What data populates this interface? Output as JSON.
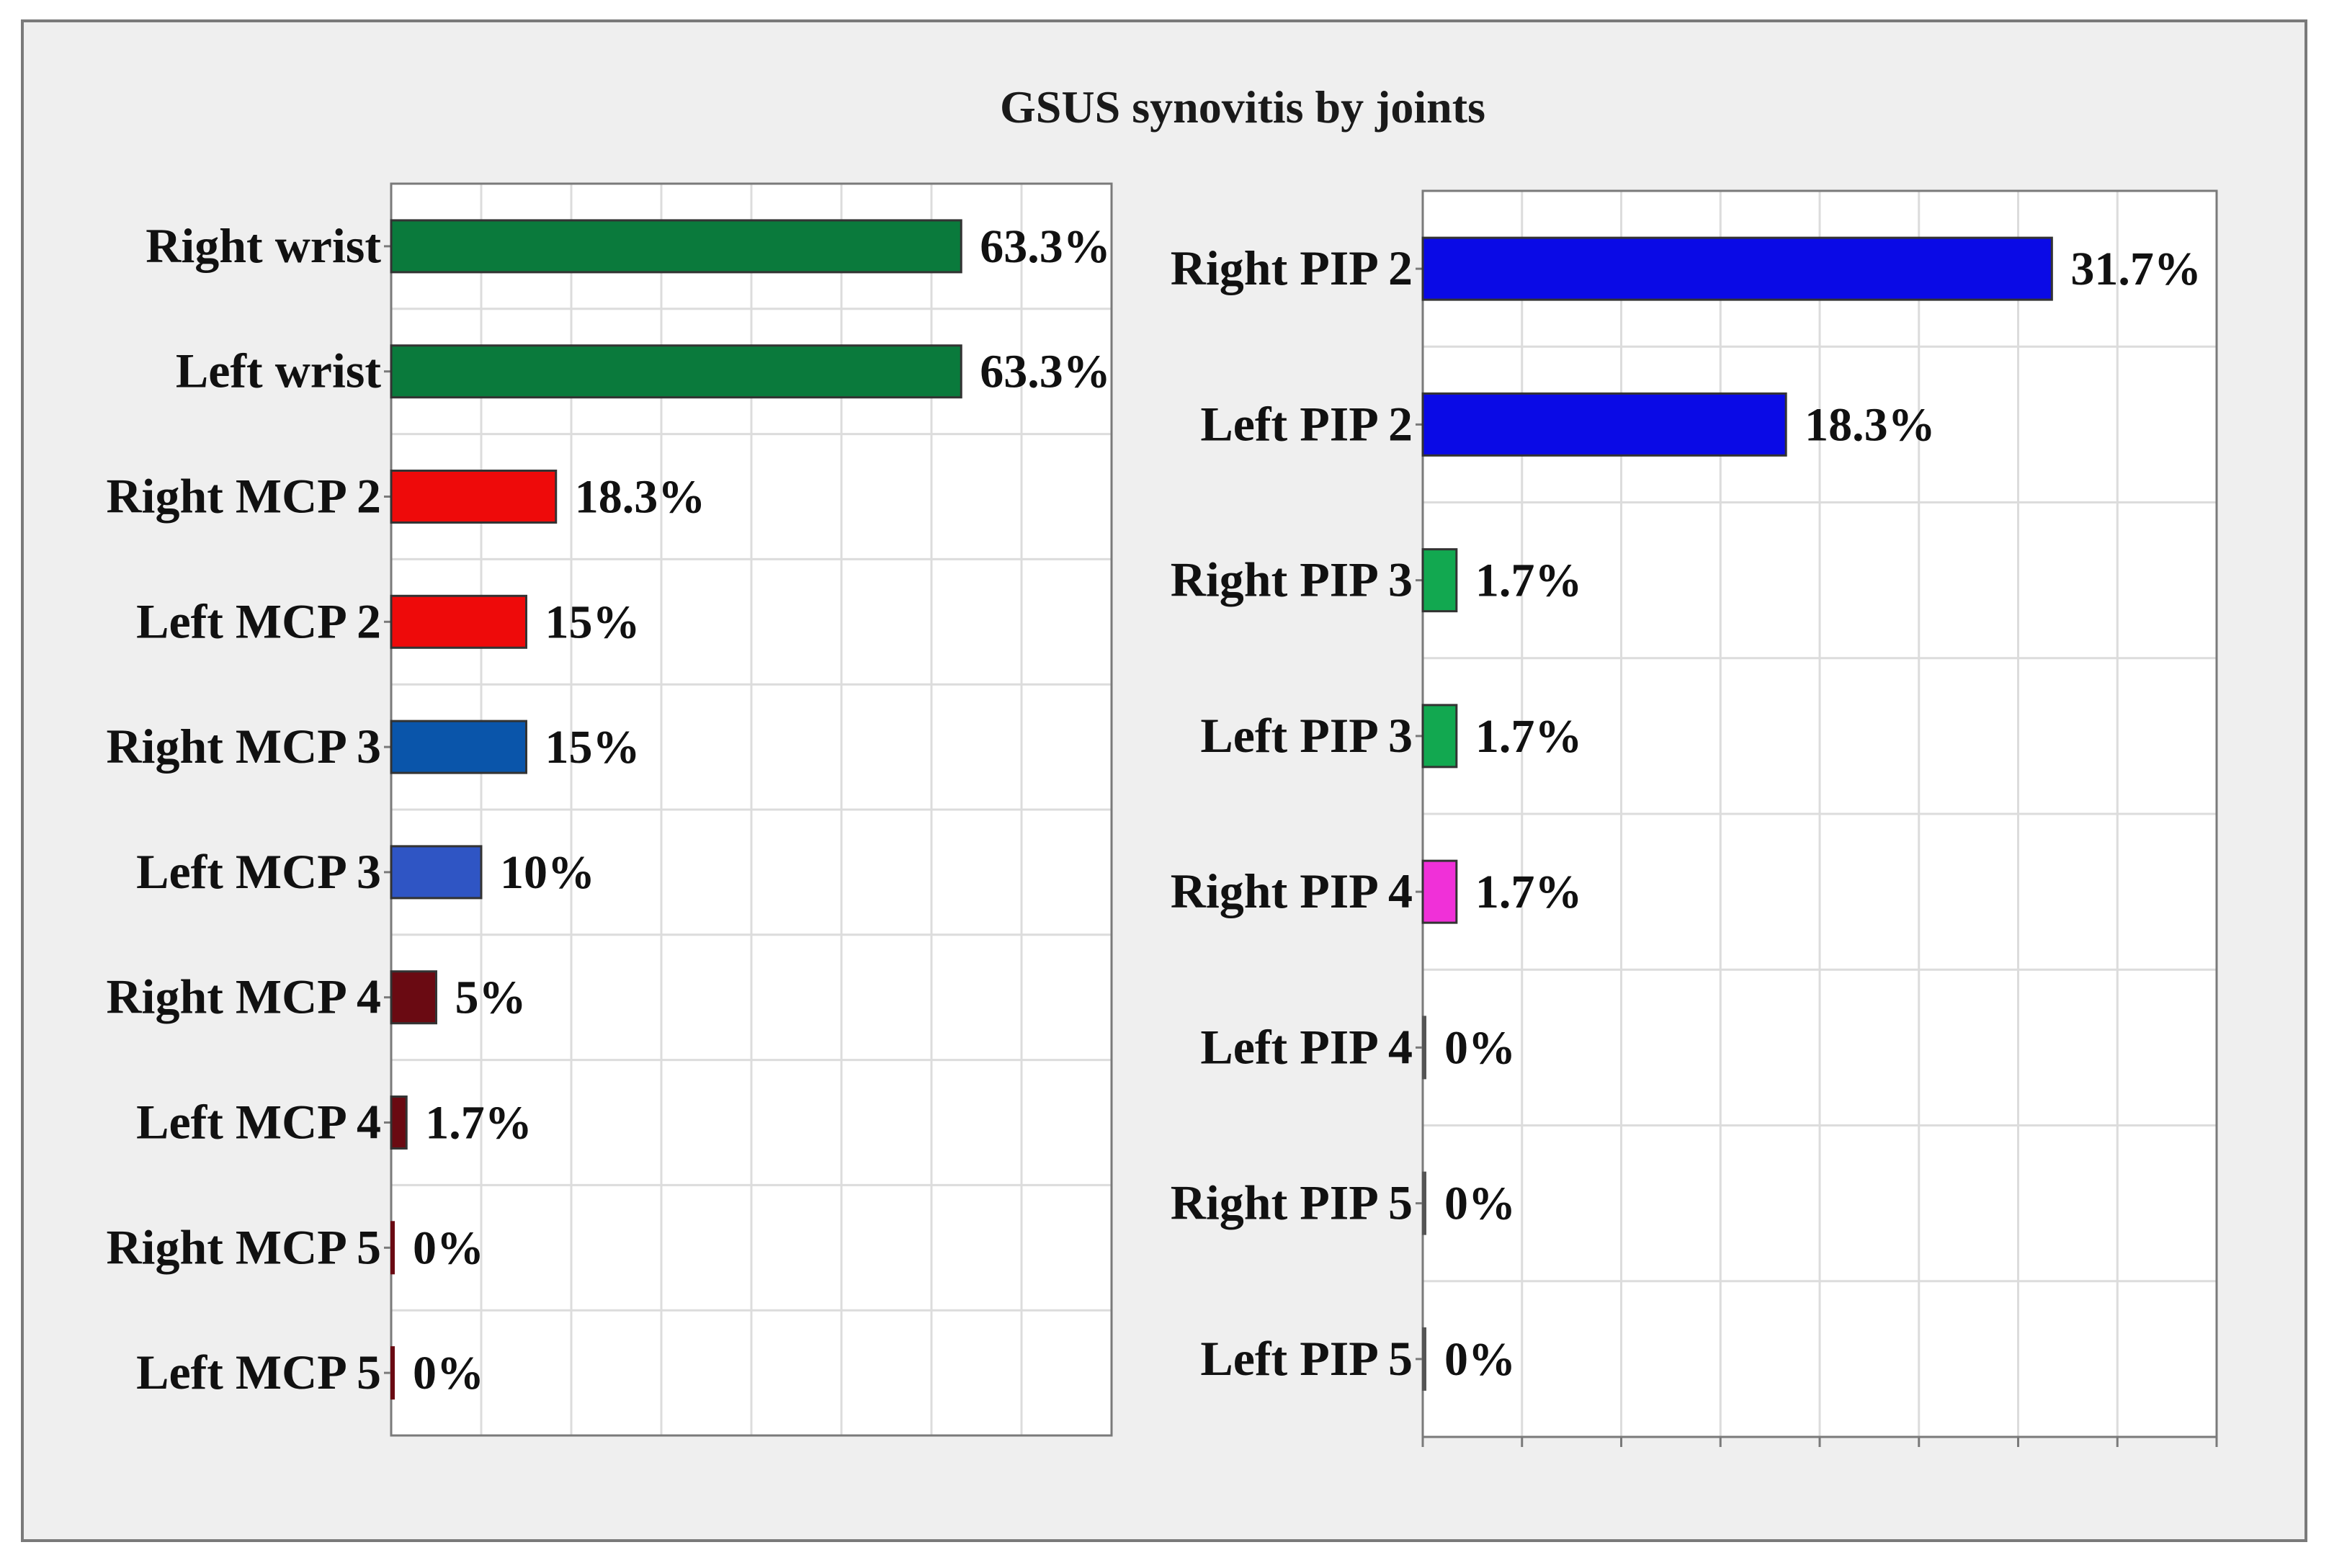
{
  "title": "GSUS synovitis by joints",
  "chart_data": [
    {
      "type": "bar",
      "orientation": "horizontal",
      "categories": [
        "Right wrist",
        "Left wrist",
        "Right MCP 2",
        "Left MCP 2",
        "Right MCP 3",
        "Left MCP 3",
        "Right MCP 4",
        "Left MCP 4",
        "Right MCP 5",
        "Left MCP 5"
      ],
      "values": [
        63.3,
        63.3,
        18.3,
        15,
        15,
        10,
        5,
        1.7,
        0,
        0
      ],
      "value_labels": [
        "63.3%",
        "63.3%",
        "18.3%",
        "15%",
        "15%",
        "10%",
        "5%",
        "1.7%",
        "0%",
        "0%"
      ],
      "colors": [
        "#0a7a3c",
        "#0a7a3c",
        "#ee0a0a",
        "#ee0a0a",
        "#0a55aa",
        "#2f55c4",
        "#6a0a12",
        "#6a0a12",
        "#6a0a12",
        "#6a0a12"
      ],
      "xlim": [
        0,
        80
      ],
      "grid": true
    },
    {
      "type": "bar",
      "orientation": "horizontal",
      "categories": [
        "Right PIP 2",
        "Left PIP 2",
        "Right PIP 3",
        "Left PIP 3",
        "Right PIP 4",
        "Left PIP 4",
        "Right PIP 5",
        "Left PIP 5"
      ],
      "values": [
        31.7,
        18.3,
        1.7,
        1.7,
        1.7,
        0,
        0,
        0
      ],
      "value_labels": [
        "31.7%",
        "18.3%",
        "1.7%",
        "1.7%",
        "1.7%",
        "0%",
        "0%",
        "0%"
      ],
      "colors": [
        "#0a0ae6",
        "#0a0ae6",
        "#12a850",
        "#12a850",
        "#f030d8",
        "#555555",
        "#555555",
        "#555555"
      ],
      "xlim": [
        0,
        40
      ],
      "grid": true
    }
  ]
}
